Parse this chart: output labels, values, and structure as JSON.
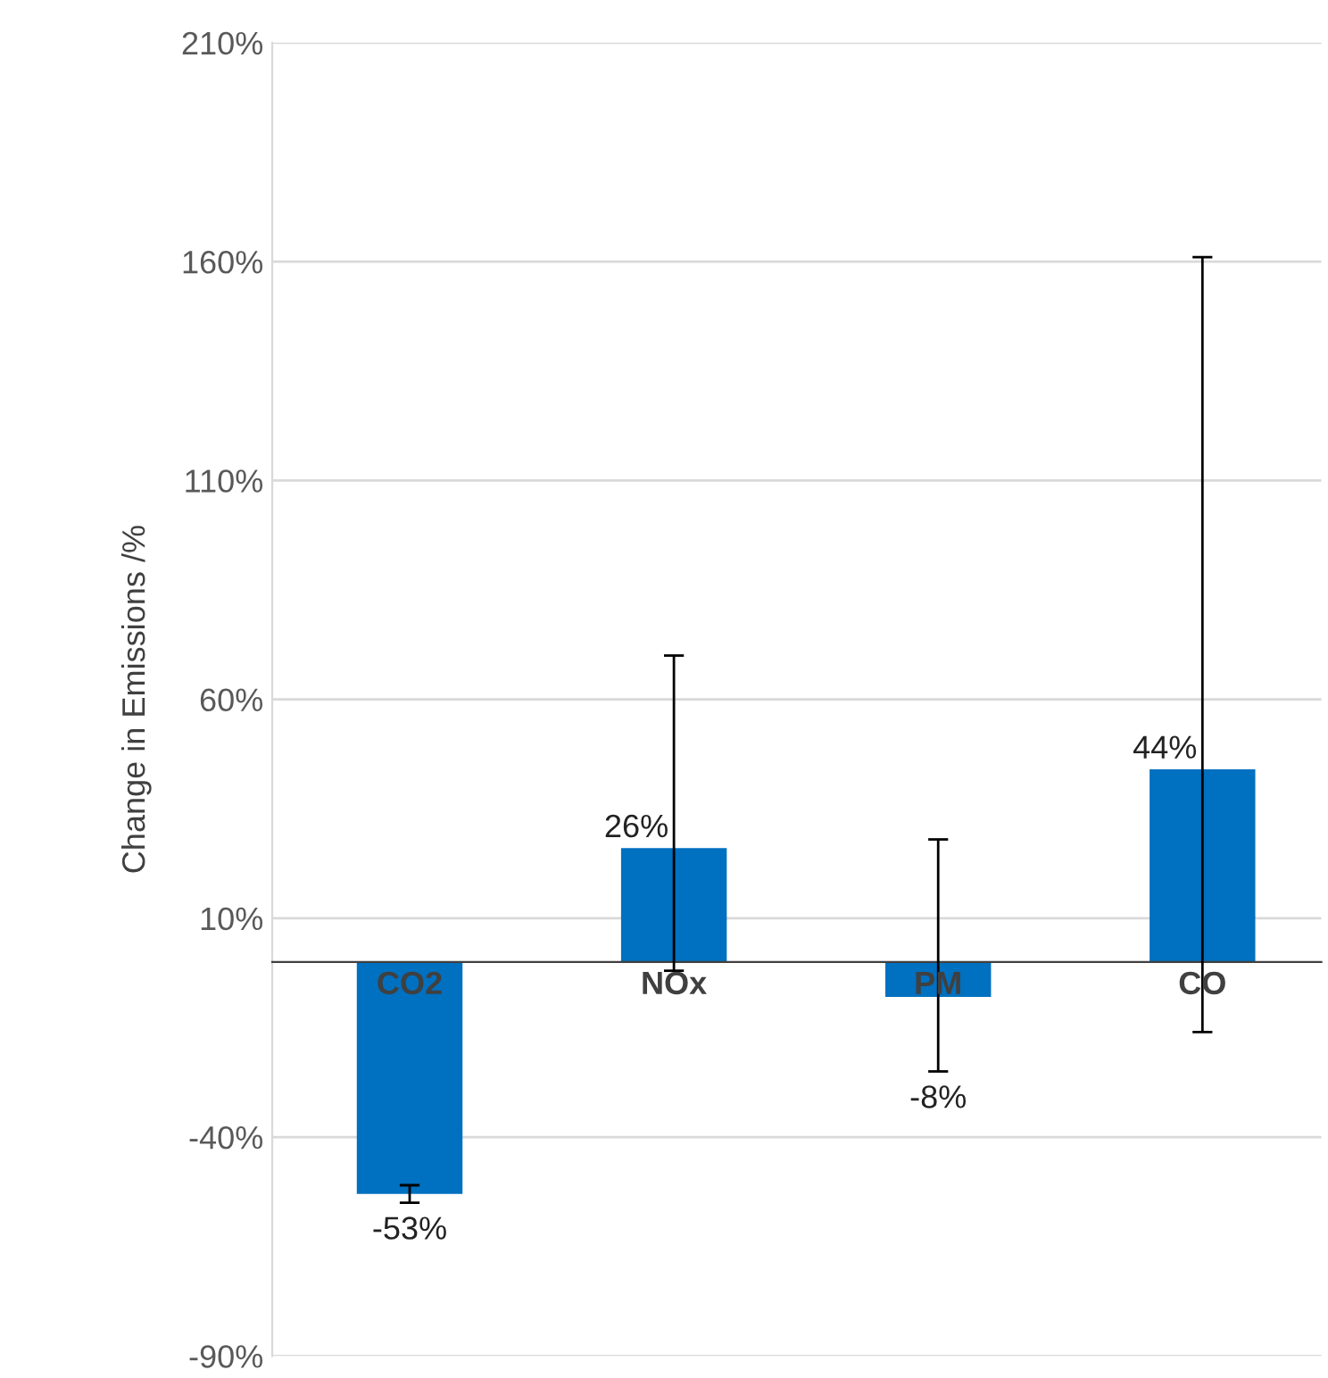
{
  "chart_data": {
    "type": "bar",
    "ylabel": "Change in Emissions /%",
    "categories": [
      "CO2",
      "NOx",
      "PM",
      "CO"
    ],
    "values": [
      -53,
      26,
      -8,
      44
    ],
    "color": "#0070c0",
    "errors": [
      [
        -55,
        -51
      ],
      [
        -2,
        70
      ],
      [
        -25,
        28
      ],
      [
        -16,
        161
      ]
    ],
    "value_labels": [
      "-53%",
      "26%",
      "-8%",
      "44%"
    ],
    "ylim": [
      -90,
      210
    ],
    "yticks": [
      {
        "value": -90,
        "label": "-90%"
      },
      {
        "value": -40,
        "label": "-40%"
      },
      {
        "value": 10,
        "label": "10%"
      },
      {
        "value": 60,
        "label": "60%"
      },
      {
        "value": 110,
        "label": "110%"
      },
      {
        "value": 160,
        "label": "160%"
      },
      {
        "value": 210,
        "label": "210%"
      }
    ],
    "grid": "y",
    "legend": false
  }
}
